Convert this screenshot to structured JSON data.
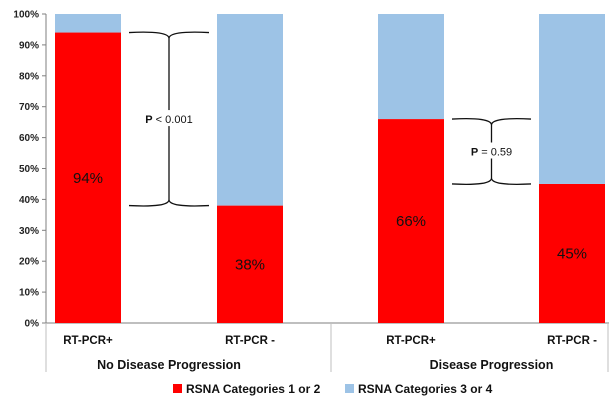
{
  "chart_data": {
    "type": "bar",
    "stacked": true,
    "groups": [
      {
        "label": "No Disease Progression",
        "categories": [
          "RT-PCR+",
          "RT-PCR -"
        ]
      },
      {
        "label": "Disease Progression",
        "categories": [
          "RT-PCR+",
          "RT-PCR -"
        ]
      }
    ],
    "categories": [
      "RT-PCR+",
      "RT-PCR -",
      "RT-PCR+",
      "RT-PCR -"
    ],
    "series": [
      {
        "name": "RSNA Categories 1 or 2",
        "color": "#ff0000",
        "values": [
          94,
          38,
          66,
          45
        ]
      },
      {
        "name": "RSNA Categories 3 or 4",
        "color": "#9dc3e6",
        "values": [
          6,
          62,
          34,
          55
        ]
      }
    ],
    "data_labels": [
      "94%",
      "38%",
      "66%",
      "45%"
    ],
    "y_ticks": [
      "0%",
      "10%",
      "20%",
      "30%",
      "40%",
      "50%",
      "60%",
      "70%",
      "80%",
      "90%",
      "100%"
    ],
    "ylim": [
      0,
      100
    ],
    "annotations": [
      {
        "prefix": "P",
        "text": "< 0.001",
        "between": [
          0,
          1
        ]
      },
      {
        "prefix": "P",
        "text": "= 0.59",
        "between": [
          2,
          3
        ]
      }
    ],
    "legend_position": "bottom",
    "grid": false,
    "title": "",
    "xlabel": "",
    "ylabel": ""
  }
}
